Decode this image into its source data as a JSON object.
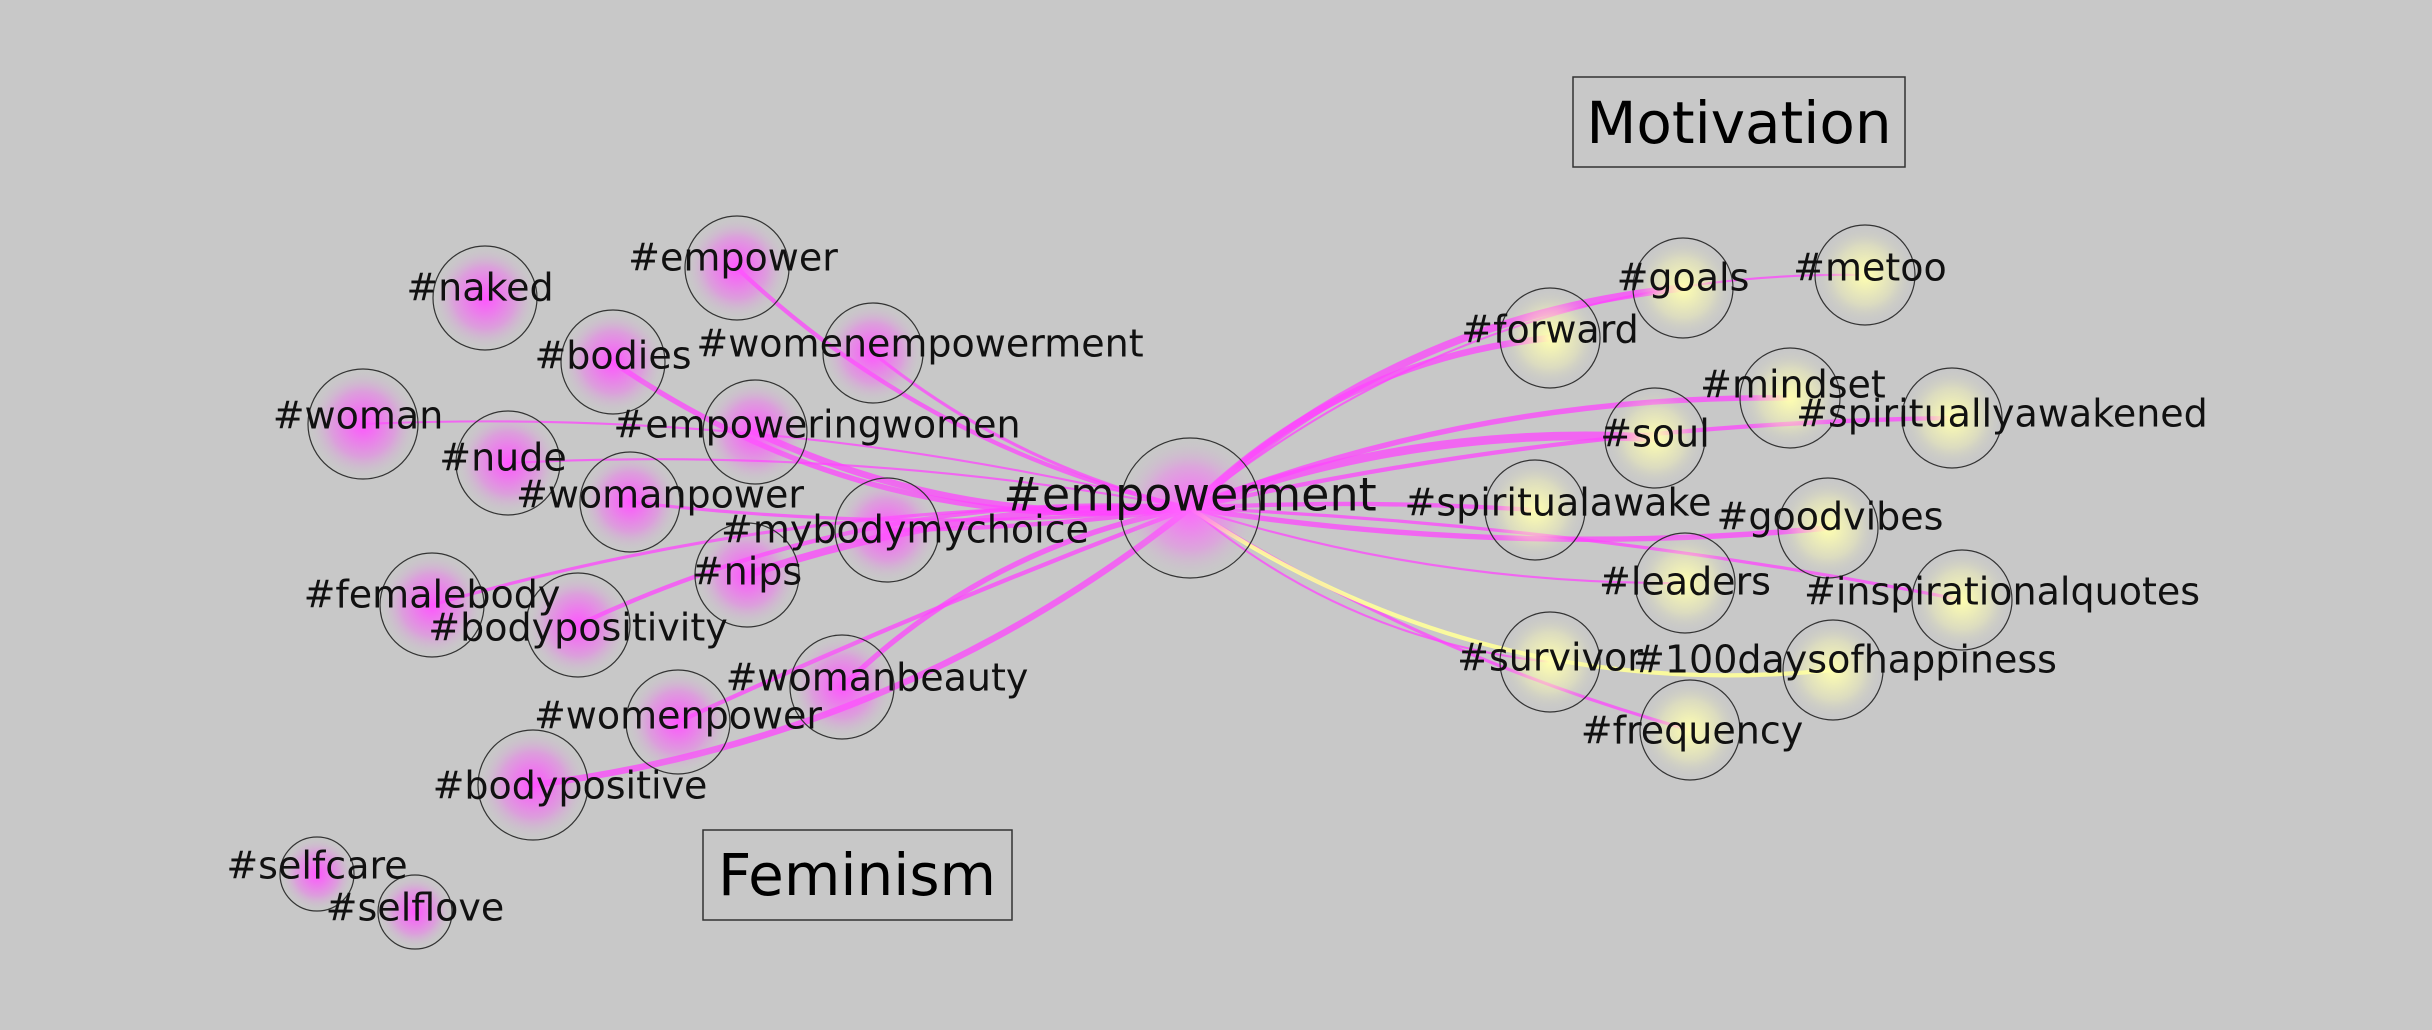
{
  "colors": {
    "background": "#c8c8c8",
    "feminism_edge": "#ff44ff",
    "motivation_edge": "#ffff99",
    "feminism_node_core": "#ff55ff",
    "motivation_node_core": "#ffffb0",
    "center_node_core": "#ff66ff"
  },
  "clusters": [
    {
      "id": "motivation",
      "label": "Motivation"
    },
    {
      "id": "feminism",
      "label": "Feminism"
    }
  ],
  "center": {
    "id": "empowerment",
    "label": "#empowerment"
  },
  "nodes": [
    {
      "id": "naked",
      "label": "#naked",
      "cluster": "feminism"
    },
    {
      "id": "empower",
      "label": "#empower",
      "cluster": "feminism"
    },
    {
      "id": "bodies",
      "label": "#bodies",
      "cluster": "feminism"
    },
    {
      "id": "womenempowerment",
      "label": "#womenempowerment",
      "cluster": "feminism"
    },
    {
      "id": "woman",
      "label": "#woman",
      "cluster": "feminism"
    },
    {
      "id": "empoweringwomen",
      "label": "#empoweringwomen",
      "cluster": "feminism"
    },
    {
      "id": "nude",
      "label": "#nude",
      "cluster": "feminism"
    },
    {
      "id": "womanpower",
      "label": "#womanpower",
      "cluster": "feminism"
    },
    {
      "id": "mybodymychoice",
      "label": "#mybodymychoice",
      "cluster": "feminism"
    },
    {
      "id": "nips",
      "label": "#nips",
      "cluster": "feminism"
    },
    {
      "id": "femalebody",
      "label": "#femalebody",
      "cluster": "feminism"
    },
    {
      "id": "bodypositivity",
      "label": "#bodypositivity",
      "cluster": "feminism"
    },
    {
      "id": "womanbeauty",
      "label": "#womanbeauty",
      "cluster": "feminism"
    },
    {
      "id": "womenpower",
      "label": "#womenpower",
      "cluster": "feminism"
    },
    {
      "id": "bodypositive",
      "label": "#bodypositive",
      "cluster": "feminism"
    },
    {
      "id": "selfcare",
      "label": "#selfcare",
      "cluster": "feminism"
    },
    {
      "id": "selflove",
      "label": "#selflove",
      "cluster": "feminism"
    },
    {
      "id": "goals",
      "label": "#goals",
      "cluster": "motivation"
    },
    {
      "id": "metoo",
      "label": "#metoo",
      "cluster": "motivation"
    },
    {
      "id": "forward",
      "label": "#forward",
      "cluster": "motivation"
    },
    {
      "id": "mindset",
      "label": "#mindset",
      "cluster": "motivation"
    },
    {
      "id": "spirituallyawakened",
      "label": "#spirituallyawakened",
      "cluster": "motivation"
    },
    {
      "id": "soul",
      "label": "#soul",
      "cluster": "motivation"
    },
    {
      "id": "spiritualawake",
      "label": "#spiritualawake",
      "cluster": "motivation"
    },
    {
      "id": "goodvibes",
      "label": "#goodvibes",
      "cluster": "motivation"
    },
    {
      "id": "leaders",
      "label": "#leaders",
      "cluster": "motivation"
    },
    {
      "id": "inspirationalquotes",
      "label": "#inspirationalquotes",
      "cluster": "motivation"
    },
    {
      "id": "survivor",
      "label": "#survivor",
      "cluster": "motivation"
    },
    {
      "id": "100daysofhappiness",
      "label": "#100daysofhappiness",
      "cluster": "motivation"
    },
    {
      "id": "frequency",
      "label": "#frequency",
      "cluster": "motivation"
    }
  ],
  "edges": [
    {
      "from": "empowerment",
      "to": "empower",
      "weight": 3,
      "color": "feminism"
    },
    {
      "from": "empowerment",
      "to": "bodies",
      "weight": 4,
      "color": "feminism"
    },
    {
      "from": "empowerment",
      "to": "womenempowerment",
      "weight": 2,
      "color": "feminism"
    },
    {
      "from": "empowerment",
      "to": "empoweringwomen",
      "weight": 5,
      "color": "feminism"
    },
    {
      "from": "empowerment",
      "to": "woman",
      "weight": 1,
      "color": "feminism"
    },
    {
      "from": "empowerment",
      "to": "nude",
      "weight": 1,
      "color": "feminism"
    },
    {
      "from": "empowerment",
      "to": "womanpower",
      "weight": 2,
      "color": "feminism"
    },
    {
      "from": "empowerment",
      "to": "mybodymychoice",
      "weight": 3,
      "color": "feminism"
    },
    {
      "from": "empowerment",
      "to": "nips",
      "weight": 6,
      "color": "feminism"
    },
    {
      "from": "empowerment",
      "to": "femalebody",
      "weight": 2,
      "color": "feminism"
    },
    {
      "from": "empowerment",
      "to": "bodypositivity",
      "weight": 3,
      "color": "feminism"
    },
    {
      "from": "empowerment",
      "to": "womanbeauty",
      "weight": 4,
      "color": "feminism"
    },
    {
      "from": "empowerment",
      "to": "womenpower",
      "weight": 3,
      "color": "feminism"
    },
    {
      "from": "empowerment",
      "to": "bodypositive",
      "weight": 5,
      "color": "feminism"
    },
    {
      "from": "empowerment",
      "to": "goals",
      "weight": 6,
      "color": "feminism"
    },
    {
      "from": "empowerment",
      "to": "metoo",
      "weight": 1,
      "color": "feminism"
    },
    {
      "from": "empowerment",
      "to": "forward",
      "weight": 5,
      "color": "feminism"
    },
    {
      "from": "empowerment",
      "to": "mindset",
      "weight": 4,
      "color": "feminism"
    },
    {
      "from": "empowerment",
      "to": "spirituallyawakened",
      "weight": 3,
      "color": "feminism"
    },
    {
      "from": "empowerment",
      "to": "soul",
      "weight": 7,
      "color": "feminism"
    },
    {
      "from": "empowerment",
      "to": "spiritualawake",
      "weight": 3,
      "color": "feminism"
    },
    {
      "from": "empowerment",
      "to": "goodvibes",
      "weight": 4,
      "color": "feminism"
    },
    {
      "from": "empowerment",
      "to": "leaders",
      "weight": 1,
      "color": "feminism"
    },
    {
      "from": "empowerment",
      "to": "inspirationalquotes",
      "weight": 2,
      "color": "feminism"
    },
    {
      "from": "empowerment",
      "to": "survivor",
      "weight": 1,
      "color": "feminism"
    },
    {
      "from": "empowerment",
      "to": "frequency",
      "weight": 2,
      "color": "feminism"
    },
    {
      "from": "empowerment",
      "to": "100daysofhappiness",
      "weight": 3,
      "color": "motivation"
    }
  ]
}
